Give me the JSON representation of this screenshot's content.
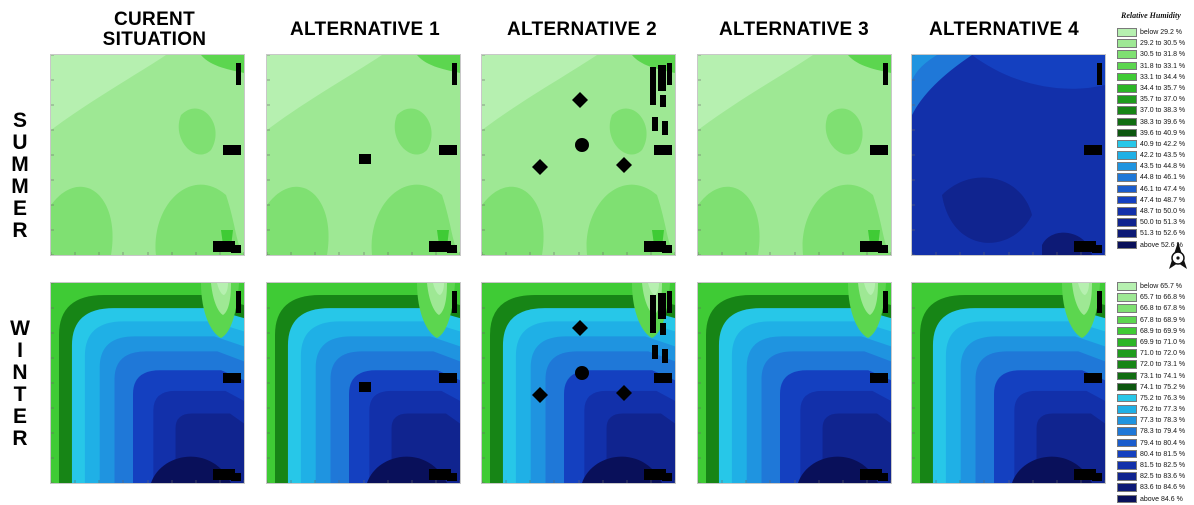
{
  "column_titles": [
    "CURENT\nSITUATION",
    "ALTERNATIVE 1",
    "ALTERNATIVE 2",
    "ALTERNATIVE 3",
    "ALTERNATIVE 4"
  ],
  "row_labels": [
    "SUMMER",
    "WINTER"
  ],
  "legend": {
    "title": "Relative Humidity",
    "summer": [
      {
        "label": "below 29.2 %",
        "color": "#b6f0b0"
      },
      {
        "label": "29.2 to 30.5 %",
        "color": "#9ee894"
      },
      {
        "label": "30.5 to 31.8 %",
        "color": "#7fe072"
      },
      {
        "label": "31.8 to 33.1 %",
        "color": "#5cd64f"
      },
      {
        "label": "33.1 to 34.4 %",
        "color": "#3fcb35"
      },
      {
        "label": "34.4 to 35.7 %",
        "color": "#2bb526"
      },
      {
        "label": "35.7 to 37.0 %",
        "color": "#1f9c1d"
      },
      {
        "label": "37.0 to 38.3 %",
        "color": "#178516"
      },
      {
        "label": "38.3 to 39.6 %",
        "color": "#116d12"
      },
      {
        "label": "39.6 to 40.9 %",
        "color": "#0c560f"
      },
      {
        "label": "40.9 to 42.2 %",
        "color": "#27c7e8"
      },
      {
        "label": "42.2 to 43.5 %",
        "color": "#1fb0e6"
      },
      {
        "label": "43.5 to 44.8 %",
        "color": "#1f94e0"
      },
      {
        "label": "44.8 to 46.1 %",
        "color": "#1f78d8"
      },
      {
        "label": "46.1 to 47.4 %",
        "color": "#1a5ccc"
      },
      {
        "label": "47.4 to 48.7 %",
        "color": "#1440c0"
      },
      {
        "label": "48.7 to 50.0 %",
        "color": "#1230aa"
      },
      {
        "label": "50.0 to 51.3 %",
        "color": "#10248f"
      },
      {
        "label": "51.3 to 52.6 %",
        "color": "#0d1a76"
      },
      {
        "label": "above 52.6 %",
        "color": "#09105a"
      }
    ],
    "winter": [
      {
        "label": "below 65.7 %",
        "color": "#b6f0b0"
      },
      {
        "label": "65.7 to 66.8 %",
        "color": "#9ee894"
      },
      {
        "label": "66.8 to 67.8 %",
        "color": "#7fe072"
      },
      {
        "label": "67.8 to 68.9 %",
        "color": "#5cd64f"
      },
      {
        "label": "68.9 to 69.9 %",
        "color": "#3fcb35"
      },
      {
        "label": "69.9 to 71.0 %",
        "color": "#2bb526"
      },
      {
        "label": "71.0 to 72.0 %",
        "color": "#1f9c1d"
      },
      {
        "label": "72.0 to 73.1 %",
        "color": "#178516"
      },
      {
        "label": "73.1 to 74.1 %",
        "color": "#116d12"
      },
      {
        "label": "74.1 to 75.2 %",
        "color": "#0c560f"
      },
      {
        "label": "75.2 to 76.3 %",
        "color": "#27c7e8"
      },
      {
        "label": "76.2 to 77.3 %",
        "color": "#1fb0e6"
      },
      {
        "label": "77.3 to 78.3 %",
        "color": "#1f94e0"
      },
      {
        "label": "78.3 to 79.4 %",
        "color": "#1f78d8"
      },
      {
        "label": "79.4 to 80.4 %",
        "color": "#1a5ccc"
      },
      {
        "label": "80.4 to 81.5 %",
        "color": "#1440c0"
      },
      {
        "label": "81.5 to 82.5 %",
        "color": "#1230aa"
      },
      {
        "label": "82.5 to 83.6 %",
        "color": "#10248f"
      },
      {
        "label": "83.6 to 84.6 %",
        "color": "#0d1a76"
      },
      {
        "label": "above 84.6 %",
        "color": "#09105a"
      }
    ]
  },
  "chart_data": {
    "type": "heatmap",
    "title": "",
    "quantity": "Relative Humidity",
    "grid": "2 rows (SUMMER, WINTER) x 5 columns (CURENT SITUATION, ALTERNATIVE 1-4)",
    "panels": [
      {
        "season": "SUMMER",
        "scenario": "CURENT SITUATION",
        "dominant_classes": [
          "below 29.2 %",
          "29.2 to 30.5 %",
          "30.5 to 31.8 %"
        ]
      },
      {
        "season": "SUMMER",
        "scenario": "ALTERNATIVE 1",
        "dominant_classes": [
          "below 29.2 %",
          "29.2 to 30.5 %",
          "30.5 to 31.8 %"
        ]
      },
      {
        "season": "SUMMER",
        "scenario": "ALTERNATIVE 2",
        "dominant_classes": [
          "below 29.2 %",
          "29.2 to 30.5 %",
          "30.5 to 31.8 %"
        ]
      },
      {
        "season": "SUMMER",
        "scenario": "ALTERNATIVE 3",
        "dominant_classes": [
          "below 29.2 %",
          "29.2 to 30.5 %",
          "30.5 to 31.8 %"
        ]
      },
      {
        "season": "SUMMER",
        "scenario": "ALTERNATIVE 4",
        "dominant_classes": [
          "46.1 to 47.4 %",
          "48.7 to 50.0 %",
          "above 52.6 %"
        ]
      },
      {
        "season": "WINTER",
        "scenario": "CURENT SITUATION",
        "dominant_classes": [
          "below 65.7 %",
          "75.2 to 76.3 %",
          "above 84.6 %"
        ]
      },
      {
        "season": "WINTER",
        "scenario": "ALTERNATIVE 1",
        "dominant_classes": [
          "below 65.7 %",
          "75.2 to 76.3 %",
          "above 84.6 %"
        ]
      },
      {
        "season": "WINTER",
        "scenario": "ALTERNATIVE 2",
        "dominant_classes": [
          "below 65.7 %",
          "75.2 to 76.3 %",
          "above 84.6 %"
        ]
      },
      {
        "season": "WINTER",
        "scenario": "ALTERNATIVE 3",
        "dominant_classes": [
          "below 65.7 %",
          "75.2 to 76.3 %",
          "above 84.6 %"
        ]
      },
      {
        "season": "WINTER",
        "scenario": "ALTERNATIVE 4",
        "dominant_classes": [
          "below 65.7 %",
          "75.2 to 76.3 %",
          "above 84.6 %"
        ]
      }
    ]
  }
}
